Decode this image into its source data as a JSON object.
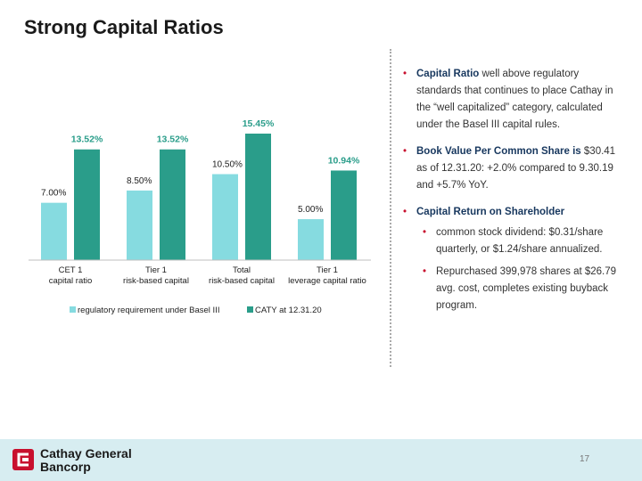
{
  "title": "Strong Capital Ratios",
  "chart_data": {
    "type": "bar",
    "categories": [
      [
        "CET 1",
        "capital ratio"
      ],
      [
        "Tier 1",
        "risk-based capital"
      ],
      [
        "Total",
        "risk-based capital"
      ],
      [
        "Tier 1",
        "leverage capital ratio"
      ]
    ],
    "series": [
      {
        "name": "regulatory requirement under Basel III",
        "values": [
          7.0,
          8.5,
          10.5,
          5.0
        ],
        "labels": [
          "7.00%",
          "8.50%",
          "10.50%",
          "5.00%"
        ],
        "color": "#86dbe0"
      },
      {
        "name": "CATY at 12.31.20",
        "values": [
          13.52,
          13.52,
          15.45,
          10.94
        ],
        "labels": [
          "13.52%",
          "13.52%",
          "15.45%",
          "10.94%"
        ],
        "color": "#2a9d8a"
      }
    ],
    "ylim": [
      0,
      15.45
    ],
    "legend": "bottom",
    "grid": false
  },
  "bullets": [
    {
      "bold": "Capital Ratio",
      "text": " well above regulatory standards that continues to place Cathay in the “well capitalized” category, calculated under the Basel III capital rules."
    },
    {
      "bold": "Book Value Per Common Share is",
      "text": " $30.41 as of 12.31.20: +2.0% compared to 9.30.19 and +5.7% YoY."
    },
    {
      "bold": "Capital Return on Shareholder",
      "text": ""
    }
  ],
  "sub_bullets": [
    "common stock dividend: $0.31/share quarterly, or $1.24/share annualized.",
    "Repurchased 399,978 shares at $26.79 avg. cost, completes existing buyback program."
  ],
  "footer": {
    "logo_line1": "Cathay General",
    "logo_line2": "Bancorp",
    "page_number": "17",
    "brand_color": "#c8102e"
  }
}
